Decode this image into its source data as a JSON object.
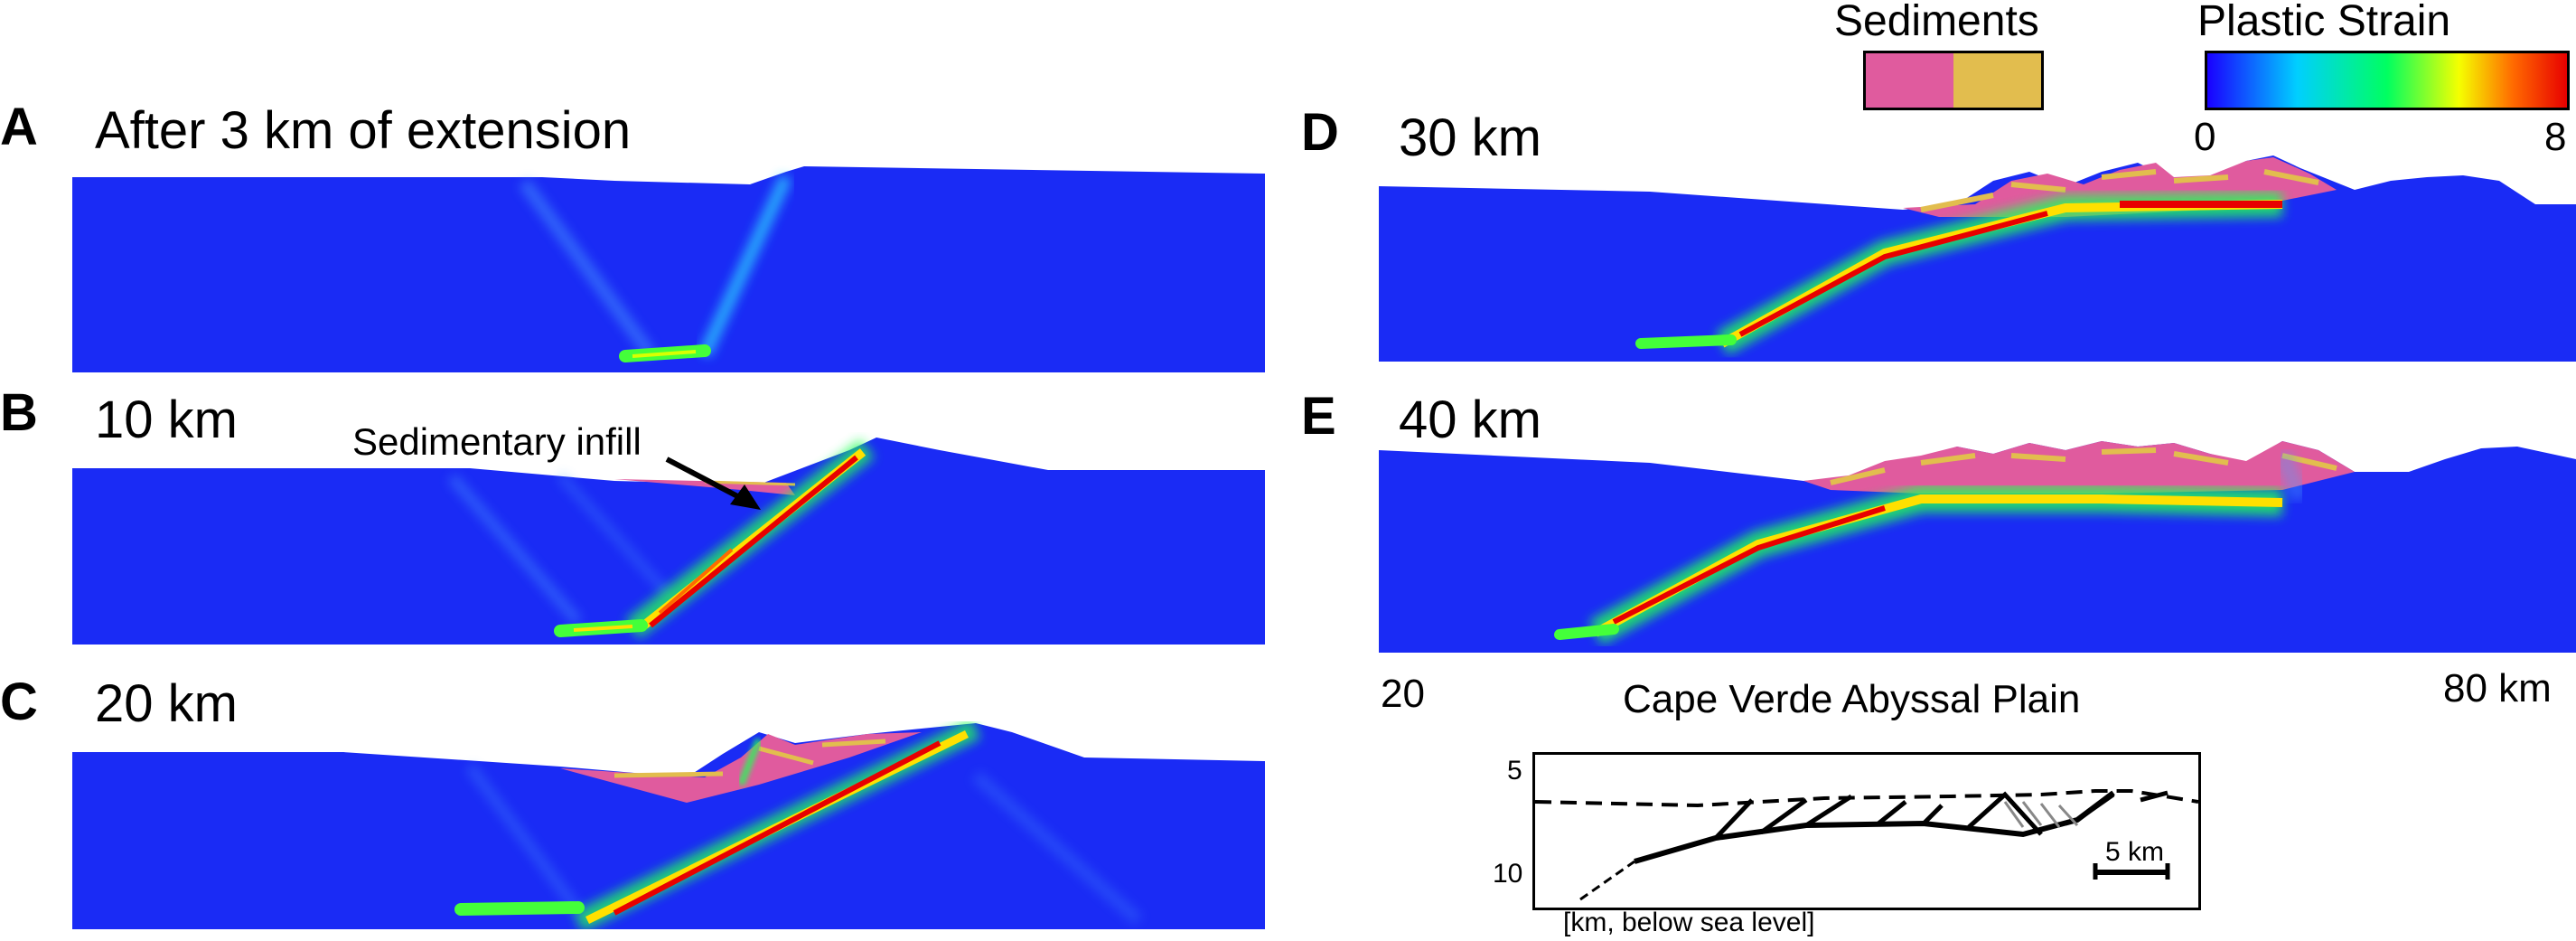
{
  "panels": [
    {
      "letter": "A",
      "title": "After 3 km of extension"
    },
    {
      "letter": "B",
      "title": "10 km"
    },
    {
      "letter": "C",
      "title": "20 km"
    },
    {
      "letter": "D",
      "title": "30 km"
    },
    {
      "letter": "E",
      "title": "40 km"
    }
  ],
  "annotation": {
    "label": "Sedimentary infill"
  },
  "legend": {
    "sediments": {
      "title": "Sediments",
      "colors": [
        "#e05b9e",
        "#e2bd4e"
      ]
    },
    "plastic_strain": {
      "title": "Plastic Strain",
      "min": "0",
      "max": "8",
      "colors": [
        "#1a00ff",
        "#00cfff",
        "#00ff60",
        "#f5ff00",
        "#ff6a00",
        "#e80000"
      ]
    }
  },
  "x_axis": {
    "left": "20",
    "right": "80 km"
  },
  "profile": {
    "title": "Cape Verde Abyssal Plain",
    "y_ticks": [
      "5",
      "10"
    ],
    "scale_bar": "5 km",
    "units": "[km, below sea level]"
  },
  "colors": {
    "background": "#1a2bf5",
    "strain_high": "#e80000",
    "sediment_pink": "#e05b9e",
    "sediment_gold": "#e2bd4e"
  }
}
